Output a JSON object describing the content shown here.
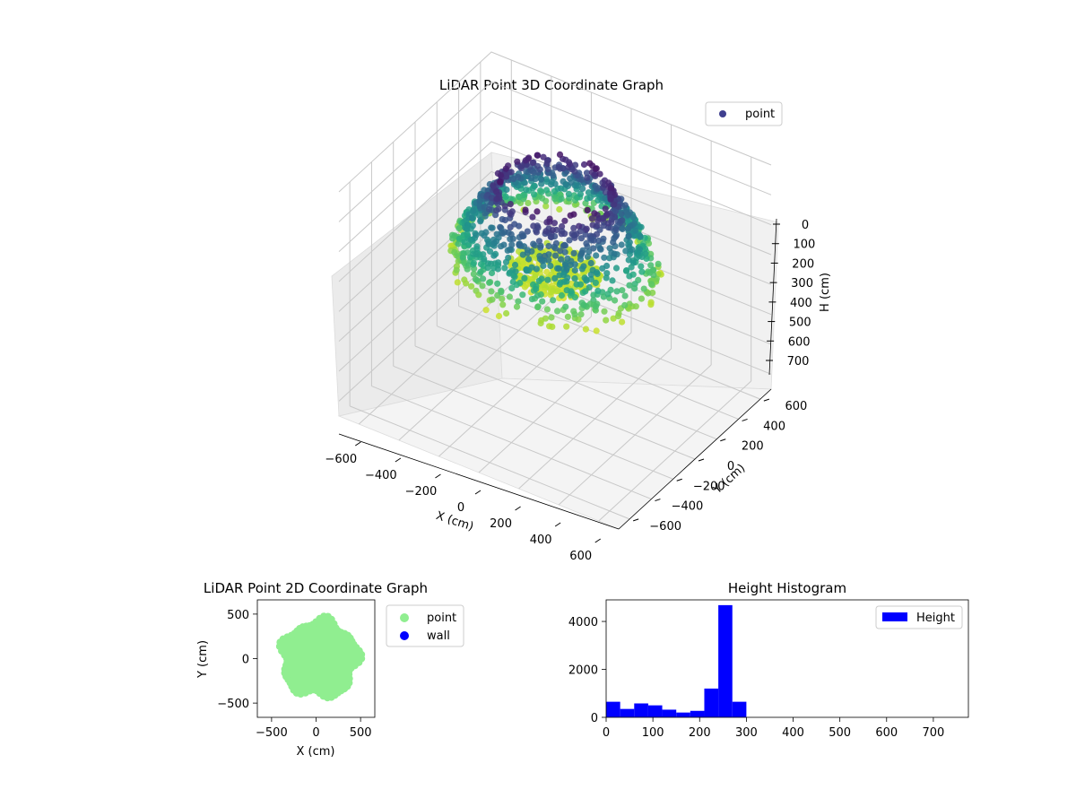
{
  "chart_data": [
    {
      "type": "scatter",
      "title": "LiDAR Point 3D Coordinate Graph",
      "xlabel": "X (cm)",
      "ylabel": "Y (cm)",
      "zlabel": "H (cm)",
      "xlim": [
        -700,
        700
      ],
      "ylim": [
        -700,
        700
      ],
      "zlim": [
        750,
        0
      ],
      "x_ticks": [
        "−600",
        "−400",
        "−200",
        "0",
        "200",
        "400",
        "600"
      ],
      "y_ticks": [
        "−600",
        "−400",
        "−200",
        "0",
        "200",
        "400",
        "600"
      ],
      "z_ticks": [
        "0",
        "100",
        "200",
        "300",
        "400",
        "500",
        "600",
        "700"
      ],
      "colormap": "viridis",
      "legend": {
        "position": "top-right",
        "entries": [
          {
            "label": "point",
            "color": "#3f3f8f"
          }
        ]
      },
      "grid": true,
      "series": [
        {
          "name": "point",
          "description_shape": "ring",
          "radius_range": [
            220,
            480
          ],
          "height_range": [
            10,
            320
          ]
        }
      ]
    },
    {
      "type": "scatter",
      "title": "LiDAR Point 2D Coordinate Graph",
      "xlabel": "X (cm)",
      "ylabel": "Y (cm)",
      "xlim": [
        -660,
        660
      ],
      "ylim": [
        -660,
        660
      ],
      "x_ticks": [
        "−500",
        "0",
        "500"
      ],
      "y_ticks": [
        "500",
        "0",
        "−500"
      ],
      "legend": {
        "position": "outside-right",
        "entries": [
          {
            "label": "point",
            "color": "#90ee90"
          },
          {
            "label": "wall",
            "color": "#0000ff"
          }
        ]
      },
      "series": [
        {
          "name": "point",
          "color": "#90ee90"
        },
        {
          "name": "wall",
          "color": "#0000ff"
        }
      ]
    },
    {
      "type": "bar",
      "title": "Height Histogram",
      "xlim": [
        0,
        775
      ],
      "ylim": [
        0,
        4900
      ],
      "x_ticks": [
        "0",
        "100",
        "200",
        "300",
        "400",
        "500",
        "600",
        "700"
      ],
      "y_ticks": [
        "0",
        "2000",
        "4000"
      ],
      "legend": {
        "position": "top-right",
        "entries": [
          {
            "label": "Height",
            "color": "#0000ff"
          }
        ]
      },
      "bin_width": 30,
      "bins_start": [
        0,
        30,
        60,
        90,
        120,
        150,
        180,
        210,
        240,
        270
      ],
      "values": [
        650,
        350,
        580,
        500,
        320,
        200,
        270,
        1200,
        4680,
        650
      ],
      "color": "#0000ff"
    }
  ]
}
